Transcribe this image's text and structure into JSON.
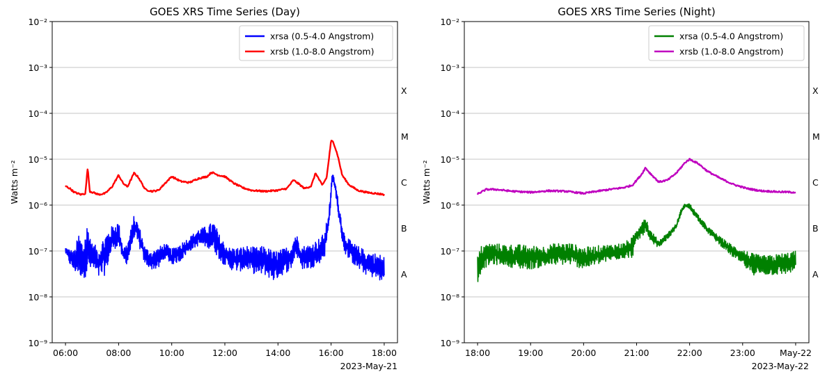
{
  "chart_data": [
    {
      "type": "line",
      "title": "GOES XRS Time Series (Day)",
      "xlabel": "",
      "ylabel": "Watts m⁻²",
      "date_label": "2023-May-21",
      "yscale": "log",
      "ylim": [
        1e-09,
        0.01
      ],
      "xlim": [
        "05:30",
        "18:30"
      ],
      "x_ticks": [
        "06:00",
        "08:00",
        "10:00",
        "12:00",
        "14:00",
        "16:00",
        "18:00"
      ],
      "y_ticks": [
        "10⁻⁹",
        "10⁻⁸",
        "10⁻⁷",
        "10⁻⁶",
        "10⁻⁵",
        "10⁻⁴",
        "10⁻³",
        "10⁻²"
      ],
      "grid": "horizontal",
      "legend_position": "top-right",
      "flare_classes": [
        "A",
        "B",
        "C",
        "M",
        "X"
      ],
      "series": [
        {
          "name": "xrsa (0.5-4.0 Angstrom)",
          "color": "#0000ff",
          "x": [
            "06:00",
            "06:10",
            "06:20",
            "06:30",
            "06:40",
            "06:50",
            "07:00",
            "07:15",
            "07:30",
            "07:45",
            "08:00",
            "08:10",
            "08:20",
            "08:35",
            "08:45",
            "09:00",
            "09:15",
            "09:30",
            "09:45",
            "10:00",
            "10:20",
            "10:40",
            "11:00",
            "11:20",
            "11:35",
            "11:50",
            "12:10",
            "12:30",
            "12:50",
            "13:10",
            "13:30",
            "13:50",
            "14:10",
            "14:30",
            "14:40",
            "14:55",
            "15:10",
            "15:30",
            "15:45",
            "15:55",
            "16:03",
            "16:10",
            "16:20",
            "16:30",
            "16:45",
            "17:00",
            "17:20",
            "17:40",
            "18:00"
          ],
          "low": [
            9e-08,
            5e-08,
            3.5e-08,
            3e-08,
            2.5e-08,
            3e-08,
            4e-08,
            2.5e-08,
            3e-08,
            1e-07,
            1.3e-07,
            6e-08,
            5e-08,
            2e-07,
            1.3e-07,
            5e-08,
            4e-08,
            4e-08,
            7e-08,
            5e-08,
            6e-08,
            1e-07,
            1.3e-07,
            1.2e-07,
            1e-07,
            6e-08,
            4e-08,
            3.5e-08,
            4e-08,
            3e-08,
            3e-08,
            2.2e-08,
            3e-08,
            4e-08,
            8e-08,
            4e-08,
            4e-08,
            5e-08,
            7e-08,
            3e-07,
            3.5e-06,
            1.8e-06,
            3e-07,
            9e-08,
            6e-08,
            4e-08,
            3e-08,
            2.5e-08,
            2e-08
          ],
          "high": [
            1.2e-07,
            1.1e-07,
            1e-07,
            2.5e-07,
            1.5e-07,
            4.5e-07,
            1.5e-07,
            1.2e-07,
            2.5e-07,
            3.5e-07,
            4.5e-07,
            1.2e-07,
            1.5e-07,
            6e-07,
            4e-07,
            1.2e-07,
            1e-07,
            1.2e-07,
            1.5e-07,
            1.1e-07,
            1.5e-07,
            2e-07,
            3e-07,
            3.5e-07,
            4.5e-07,
            2e-07,
            1.2e-07,
            1.2e-07,
            1.3e-07,
            1.2e-07,
            1.3e-07,
            1e-07,
            1.1e-07,
            1.4e-07,
            2.5e-07,
            1.3e-07,
            1.4e-07,
            1.8e-07,
            2.5e-07,
            8e-07,
            5.5e-06,
            3e-06,
            8e-07,
            2.5e-07,
            1.6e-07,
            1.3e-07,
            1e-07,
            9e-08,
            8e-08
          ]
        },
        {
          "name": "xrsb (1.0-8.0 Angstrom)",
          "color": "#ff0000",
          "x": [
            "06:00",
            "06:10",
            "06:20",
            "06:35",
            "06:45",
            "06:50",
            "06:55",
            "07:15",
            "07:30",
            "07:45",
            "08:00",
            "08:10",
            "08:20",
            "08:35",
            "08:45",
            "09:00",
            "09:15",
            "09:30",
            "09:45",
            "10:00",
            "10:20",
            "10:40",
            "11:00",
            "11:20",
            "11:30",
            "11:45",
            "12:00",
            "12:20",
            "12:40",
            "13:00",
            "13:30",
            "14:00",
            "14:20",
            "14:35",
            "14:45",
            "15:00",
            "15:15",
            "15:25",
            "15:40",
            "15:50",
            "16:00",
            "16:05",
            "16:15",
            "16:25",
            "16:40",
            "17:00",
            "17:20",
            "17:40",
            "18:00"
          ],
          "values": [
            2.6e-06,
            2.3e-06,
            1.9e-06,
            1.7e-06,
            1.8e-06,
            6.5e-06,
            2e-06,
            1.7e-06,
            1.8e-06,
            2.5e-06,
            4.5e-06,
            3e-06,
            2.5e-06,
            5e-06,
            4e-06,
            2.2e-06,
            2e-06,
            2.1e-06,
            3e-06,
            4.2e-06,
            3.3e-06,
            3.1e-06,
            3.8e-06,
            4.2e-06,
            5.2e-06,
            4.5e-06,
            4.2e-06,
            3e-06,
            2.4e-06,
            2.1e-06,
            2e-06,
            2.1e-06,
            2.3e-06,
            3.5e-06,
            3e-06,
            2.3e-06,
            2.6e-06,
            5e-06,
            2.7e-06,
            4e-06,
            2.5e-05,
            2.4e-05,
            1.2e-05,
            4.5e-06,
            2.8e-06,
            2.1e-06,
            1.9e-06,
            1.8e-06,
            1.7e-06
          ]
        }
      ]
    },
    {
      "type": "line",
      "title": "GOES XRS Time Series (Night)",
      "xlabel": "",
      "ylabel": "Watts m⁻²",
      "date_label": "2023-May-22",
      "yscale": "log",
      "ylim": [
        1e-09,
        0.01
      ],
      "xlim": [
        "17:45",
        "24:15"
      ],
      "x_ticks": [
        "18:00",
        "19:00",
        "20:00",
        "21:00",
        "22:00",
        "23:00",
        "May-22"
      ],
      "y_ticks": [
        "10⁻⁹",
        "10⁻⁸",
        "10⁻⁷",
        "10⁻⁶",
        "10⁻⁵",
        "10⁻⁴",
        "10⁻³",
        "10⁻²"
      ],
      "grid": "horizontal",
      "legend_position": "top-right",
      "flare_classes": [
        "A",
        "B",
        "C",
        "M",
        "X"
      ],
      "series": [
        {
          "name": "xrsa (0.5-4.0 Angstrom)",
          "color": "#008000",
          "x": [
            "18:00",
            "18:05",
            "18:15",
            "18:30",
            "18:45",
            "19:00",
            "19:15",
            "19:30",
            "19:45",
            "20:00",
            "20:15",
            "20:30",
            "20:45",
            "20:55",
            "21:00",
            "21:05",
            "21:10",
            "21:15",
            "21:25",
            "21:35",
            "21:45",
            "21:50",
            "21:55",
            "22:00",
            "22:10",
            "22:20",
            "22:35",
            "22:50",
            "23:00",
            "23:10",
            "23:20",
            "23:30",
            "23:45",
            "24:00"
          ],
          "low": [
            2e-08,
            4e-08,
            5e-08,
            5e-08,
            4e-08,
            4e-08,
            4.5e-08,
            5e-08,
            5e-08,
            4e-08,
            5e-08,
            6e-08,
            7e-08,
            7e-08,
            1.5e-07,
            2e-07,
            2.5e-07,
            1.5e-07,
            1.2e-07,
            1.8e-07,
            3e-07,
            6e-07,
            9e-07,
            8e-07,
            4.5e-07,
            2.5e-07,
            1.3e-07,
            7e-08,
            5e-08,
            3e-08,
            3e-08,
            3e-08,
            3e-08,
            3.5e-08
          ],
          "high": [
            8e-08,
            1.4e-07,
            1.5e-07,
            1.4e-07,
            1.4e-07,
            1.3e-07,
            1.3e-07,
            1.5e-07,
            1.5e-07,
            1.2e-07,
            1.3e-07,
            1.4e-07,
            1.5e-07,
            2e-07,
            3e-07,
            4.5e-07,
            6e-07,
            3e-07,
            1.7e-07,
            2.5e-07,
            4e-07,
            8e-07,
            1.1e-06,
            1.1e-06,
            6e-07,
            3.5e-07,
            2e-07,
            1.3e-07,
            1.1e-07,
            9e-08,
            8e-08,
            8e-08,
            9e-08,
            1e-07
          ]
        },
        {
          "name": "xrsb (1.0-8.0 Angstrom)",
          "color": "#bf00bf",
          "x": [
            "18:00",
            "18:10",
            "18:20",
            "18:40",
            "19:00",
            "19:20",
            "19:40",
            "20:00",
            "20:15",
            "20:30",
            "20:45",
            "20:55",
            "21:05",
            "21:10",
            "21:15",
            "21:25",
            "21:35",
            "21:45",
            "21:55",
            "22:00",
            "22:10",
            "22:20",
            "22:35",
            "22:50",
            "23:05",
            "23:20",
            "23:40",
            "24:00"
          ],
          "values": [
            1.75e-06,
            2.2e-06,
            2.2e-06,
            2e-06,
            1.9e-06,
            2.05e-06,
            2e-06,
            1.8e-06,
            2e-06,
            2.2e-06,
            2.4e-06,
            2.7e-06,
            4.5e-06,
            6.5e-06,
            5e-06,
            3.2e-06,
            3.5e-06,
            5e-06,
            8.5e-06,
            1e-05,
            8e-06,
            5.5e-06,
            3.8e-06,
            2.8e-06,
            2.3e-06,
            2.05e-06,
            1.95e-06,
            1.9e-06
          ]
        }
      ]
    }
  ]
}
